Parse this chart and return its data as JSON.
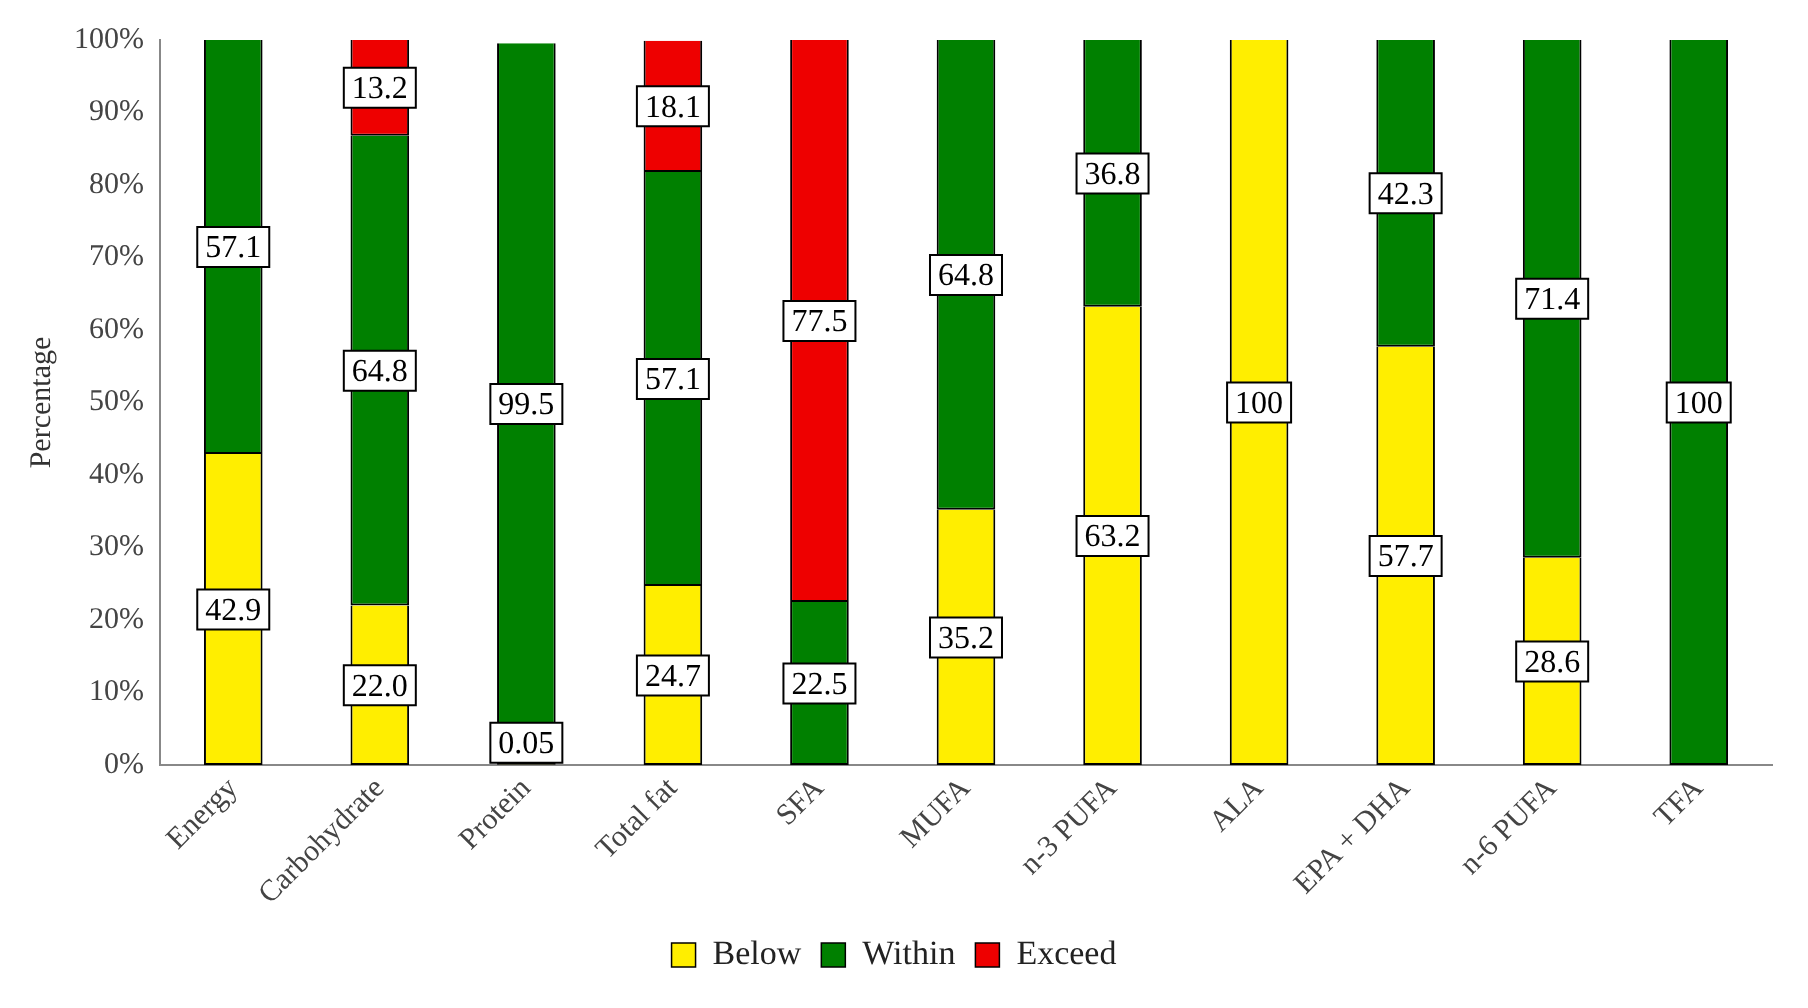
{
  "chart_data": {
    "type": "bar",
    "stacked": true,
    "ylabel": "Percentage",
    "categories": [
      "Energy",
      "Carbohydrate",
      "Protein",
      "Total fat",
      "SFA",
      "MUFA",
      "n-3 PUFA",
      "ALA",
      "EPA + DHA",
      "n-6 PUFA",
      "TFA"
    ],
    "series": [
      {
        "name": "Below",
        "color": "#ffee00",
        "values": [
          42.9,
          22.0,
          0.05,
          24.7,
          null,
          35.2,
          63.2,
          100,
          57.7,
          28.6,
          null
        ],
        "value_labels": [
          "42.9",
          "22.0",
          "0.05",
          "24.7",
          null,
          "35.2",
          "63.2",
          "100",
          "57.7",
          "28.6",
          null
        ]
      },
      {
        "name": "Within",
        "color": "#008000",
        "values": [
          57.1,
          64.8,
          99.5,
          57.1,
          22.5,
          64.8,
          36.8,
          null,
          42.3,
          71.4,
          100
        ],
        "value_labels": [
          "57.1",
          "64.8",
          "99.5",
          "57.1",
          "22.5",
          "64.8",
          "36.8",
          null,
          "42.3",
          "71.4",
          "100"
        ]
      },
      {
        "name": "Exceed",
        "color": "#ee0000",
        "values": [
          null,
          13.2,
          null,
          18.1,
          77.5,
          null,
          null,
          null,
          null,
          null,
          null
        ],
        "value_labels": [
          null,
          "13.2",
          null,
          "18.1",
          "77.5",
          null,
          null,
          null,
          null,
          null,
          null
        ]
      }
    ],
    "ylim": [
      0,
      100
    ],
    "yticks": [
      {
        "value": 0,
        "label": "0%"
      },
      {
        "value": 10,
        "label": "10%"
      },
      {
        "value": 20,
        "label": "20%"
      },
      {
        "value": 30,
        "label": "30%"
      },
      {
        "value": 40,
        "label": "40%"
      },
      {
        "value": 50,
        "label": "50%"
      },
      {
        "value": 60,
        "label": "60%"
      },
      {
        "value": 70,
        "label": "70%"
      },
      {
        "value": 80,
        "label": "80%"
      },
      {
        "value": 90,
        "label": "90%"
      },
      {
        "value": 100,
        "label": "100%"
      }
    ],
    "grid": false,
    "legend": "bottom"
  }
}
